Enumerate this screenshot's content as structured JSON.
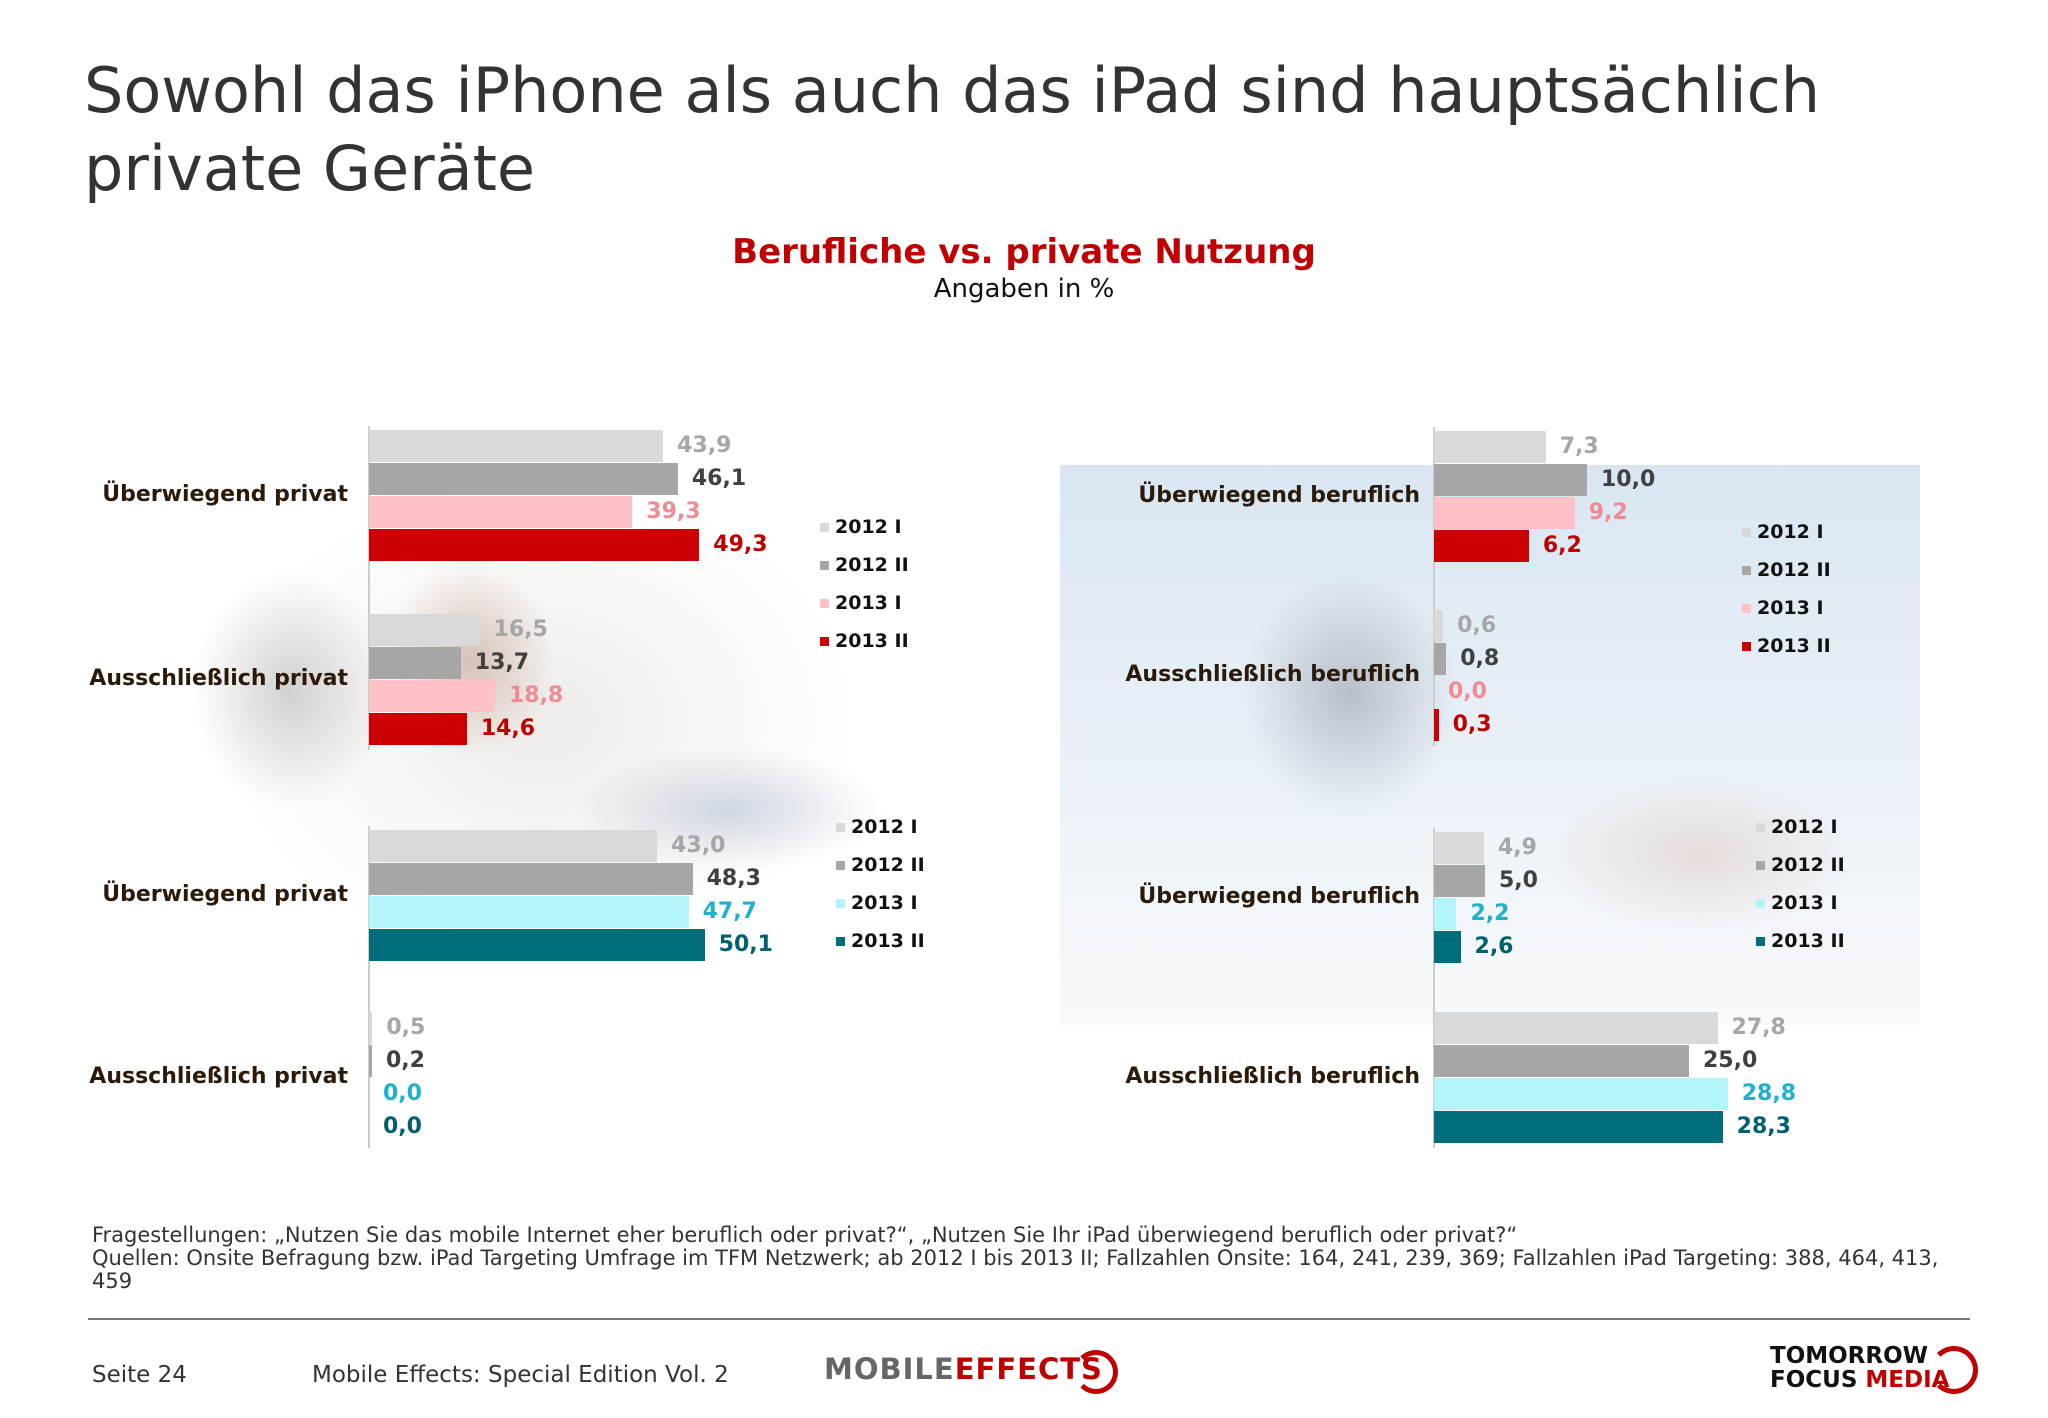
{
  "title": "Sowohl das iPhone als auch das iPad sind hauptsächlich private Geräte",
  "subtitle": "Berufliche vs. private Nutzung",
  "unit_note": "Angaben in %",
  "legend": [
    "2012 I",
    "2012 II",
    "2013 I",
    "2013 II"
  ],
  "colors": {
    "red_series": [
      "#d9d9d9",
      "#a6a6a6",
      "#ffc0c8",
      "#cc0000"
    ],
    "teal_series": [
      "#d9d9d9",
      "#a6a6a6",
      "#b3f3fa",
      "#006d7a"
    ],
    "red_labels": [
      "#a6a6a6",
      "#404040",
      "#f08a94",
      "#c00000"
    ],
    "teal_labels": [
      "#a6a6a6",
      "#404040",
      "#1fb0d0",
      "#006070"
    ]
  },
  "chart_data": [
    {
      "type": "bar",
      "orientation": "horizontal",
      "series_names": [
        "2012 I",
        "2012 II",
        "2013 I",
        "2013 II"
      ],
      "categories": [
        {
          "label": "Überwiegend privat",
          "values": [
            43.9,
            46.1,
            39.3,
            49.3
          ],
          "labels": [
            "43,9",
            "46,1",
            "39,3",
            "49,3"
          ]
        },
        {
          "label": "Ausschließlich privat",
          "values": [
            16.5,
            13.7,
            18.8,
            14.6
          ],
          "labels": [
            "16,5",
            "13,7",
            "18,8",
            "14,6"
          ]
        }
      ]
    },
    {
      "type": "bar",
      "orientation": "horizontal",
      "series_names": [
        "2012 I",
        "2012 II",
        "2013 I",
        "2013 II"
      ],
      "categories": [
        {
          "label": "Überwiegend beruflich",
          "values": [
            7.3,
            10.0,
            9.2,
            6.2
          ],
          "labels": [
            "7,3",
            "10,0",
            "9,2",
            "6,2"
          ]
        },
        {
          "label": "Ausschließlich beruflich",
          "values": [
            0.6,
            0.8,
            0.0,
            0.3
          ],
          "labels": [
            "0,6",
            "0,8",
            "0,0",
            "0,3"
          ]
        }
      ]
    },
    {
      "type": "bar",
      "orientation": "horizontal",
      "series_names": [
        "2012 I",
        "2012 II",
        "2013 I",
        "2013 II"
      ],
      "categories": [
        {
          "label": "Überwiegend privat",
          "values": [
            43.0,
            48.3,
            47.7,
            50.1
          ],
          "labels": [
            "43,0",
            "48,3",
            "47,7",
            "50,1"
          ]
        },
        {
          "label": "Ausschließlich privat",
          "values": [
            0.5,
            0.2,
            0.0,
            0.0
          ],
          "labels": [
            "0,5",
            "0,2",
            "0,0",
            "0,0"
          ]
        }
      ]
    },
    {
      "type": "bar",
      "orientation": "horizontal",
      "series_names": [
        "2012 I",
        "2012 II",
        "2013 I",
        "2013 II"
      ],
      "categories": [
        {
          "label": "Überwiegend beruflich",
          "values": [
            4.9,
            5.0,
            2.2,
            2.6
          ],
          "labels": [
            "4,9",
            "5,0",
            "2,2",
            "2,6"
          ]
        },
        {
          "label": "Ausschließlich beruflich",
          "values": [
            27.8,
            25.0,
            28.8,
            28.3
          ],
          "labels": [
            "27,8",
            "25,0",
            "28,8",
            "28,3"
          ]
        }
      ]
    }
  ],
  "footer": {
    "questions": "Fragestellungen: „Nutzen Sie das mobile Internet eher beruflich oder privat?“, „Nutzen Sie Ihr iPad überwiegend beruflich oder privat?“",
    "sources": "Quellen: Onsite Befragung bzw. iPad Targeting Umfrage im TFM Netzwerk; ab 2012 I bis 2013 II; Fallzahlen Onsite: 164, 241, 239, 369; Fallzahlen iPad Targeting: 388, 464, 413, 459",
    "page": "Seite 24",
    "publication": "Mobile Effects: Special Edition Vol. 2",
    "logo_mobile": "MOBILE",
    "logo_effects": "EFFECTS",
    "logo_tfm_1": "TOMORROW",
    "logo_tfm_2a": "FOCUS",
    "logo_tfm_2b": "MEDIA"
  }
}
